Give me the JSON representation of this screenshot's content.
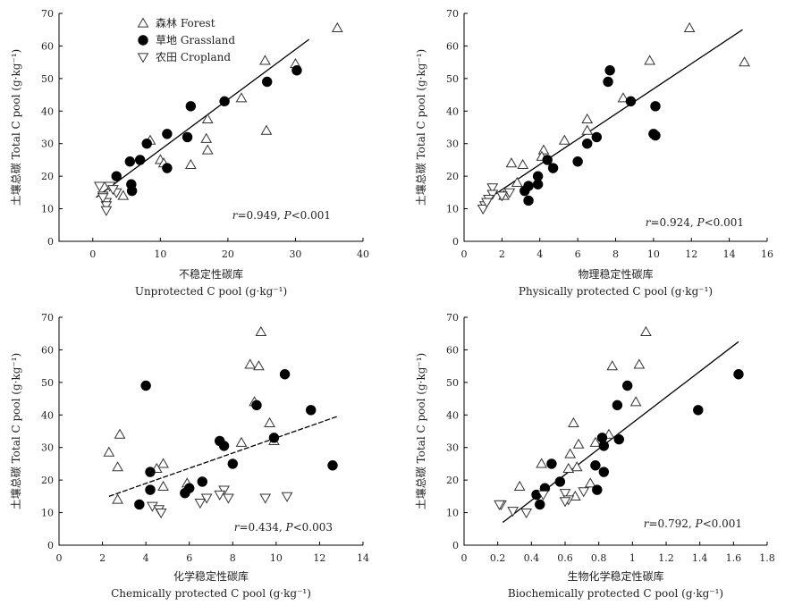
{
  "chart_data": [
    {
      "type": "scatter",
      "xlabel_cn": "不稳定性碳库",
      "xlabel": "Unprotected C pool (g·kg⁻¹)",
      "ylabel": "土壤总碳 Total C pool (g·kg⁻¹)",
      "xlim": [
        -5,
        40
      ],
      "ylim": [
        0,
        70
      ],
      "xticks": [
        0,
        10,
        20,
        30,
        40
      ],
      "yticks": [
        0,
        10,
        20,
        30,
        40,
        50,
        60,
        70
      ],
      "stat_r": "r",
      "stat_text": "=0.949, ",
      "stat_p": "P",
      "stat_tail": "<0.001",
      "fit": [
        [
          0.5,
          13.5
        ],
        [
          32,
          62
        ]
      ],
      "fit_style": "solid",
      "legend": [
        {
          "marker": "triangle-up",
          "label": "森林 Forest"
        },
        {
          "marker": "circle",
          "label": "草地 Grassland"
        },
        {
          "marker": "triangle-down",
          "label": "农田 Cropland"
        }
      ],
      "series": [
        {
          "name": "Forest",
          "marker": "triangle-up",
          "points": [
            [
              36.2,
              65.5
            ],
            [
              30,
              54.5
            ],
            [
              25.5,
              55.5
            ],
            [
              25.7,
              34
            ],
            [
              22,
              44
            ],
            [
              17,
              37.5
            ],
            [
              16.8,
              31.5
            ],
            [
              17,
              28
            ],
            [
              14.5,
              23.5
            ],
            [
              8.5,
              31
            ],
            [
              10,
              25
            ],
            [
              10.5,
              24
            ],
            [
              4.5,
              14
            ]
          ]
        },
        {
          "name": "Grassland",
          "marker": "circle",
          "points": [
            [
              30.2,
              52.5
            ],
            [
              25.8,
              49
            ],
            [
              19.5,
              43
            ],
            [
              14.5,
              41.5
            ],
            [
              14,
              32
            ],
            [
              11,
              33
            ],
            [
              11,
              22.5
            ],
            [
              8,
              30
            ],
            [
              7,
              25
            ],
            [
              5.5,
              24.5
            ],
            [
              3.5,
              20
            ],
            [
              5.7,
              17.5
            ],
            [
              5.8,
              15.5
            ]
          ]
        },
        {
          "name": "Cropland",
          "marker": "triangle-down",
          "points": [
            [
              1,
              17
            ],
            [
              2.5,
              17
            ],
            [
              3.5,
              15
            ],
            [
              1.5,
              14
            ],
            [
              2,
              12
            ],
            [
              2,
              11
            ],
            [
              2,
              9.5
            ],
            [
              1.5,
              13.5
            ],
            [
              3,
              16
            ]
          ]
        }
      ]
    },
    {
      "type": "scatter",
      "xlabel_cn": "物理稳定性碳库",
      "xlabel": "Physically protected C pool (g·kg⁻¹)",
      "ylabel": "土壤总碳 Total C pool (g·kg⁻¹)",
      "xlim": [
        0,
        16
      ],
      "ylim": [
        0,
        70
      ],
      "xticks": [
        0,
        2,
        4,
        6,
        8,
        10,
        12,
        14,
        16
      ],
      "yticks": [
        0,
        10,
        20,
        30,
        40,
        50,
        60,
        70
      ],
      "stat_r": "r",
      "stat_text": "=0.924, ",
      "stat_p": "P",
      "stat_tail": "<0.001",
      "fit": [
        [
          1,
          12
        ],
        [
          14.7,
          65
        ]
      ],
      "fit_style": "solid",
      "series": [
        {
          "name": "Forest",
          "marker": "triangle-up",
          "points": [
            [
              11.9,
              65.5
            ],
            [
              9.8,
              55.5
            ],
            [
              14.8,
              55
            ],
            [
              8.4,
              44
            ],
            [
              6.5,
              37.5
            ],
            [
              6.5,
              34
            ],
            [
              5.3,
              31
            ],
            [
              4.2,
              28
            ],
            [
              4.1,
              26
            ],
            [
              2.5,
              24
            ],
            [
              3.1,
              23.5
            ],
            [
              2.8,
              18
            ],
            [
              2.1,
              14
            ]
          ]
        },
        {
          "name": "Grassland",
          "marker": "circle",
          "points": [
            [
              7.7,
              52.5
            ],
            [
              7.6,
              49
            ],
            [
              8.8,
              43
            ],
            [
              10.1,
              41.5
            ],
            [
              10,
              33
            ],
            [
              10.1,
              32.5
            ],
            [
              7,
              32
            ],
            [
              6.5,
              30
            ],
            [
              6,
              24.5
            ],
            [
              4.7,
              22.5
            ],
            [
              4.4,
              25
            ],
            [
              3.9,
              20
            ],
            [
              3.9,
              17.5
            ],
            [
              3.4,
              17
            ],
            [
              3.2,
              15.5
            ],
            [
              3.4,
              12.5
            ]
          ]
        },
        {
          "name": "Cropland",
          "marker": "triangle-down",
          "points": [
            [
              1.5,
              16.5
            ],
            [
              1.5,
              14.5
            ],
            [
              2.4,
              15
            ],
            [
              1.1,
              11
            ],
            [
              1.3,
              13
            ],
            [
              1,
              10
            ],
            [
              1.2,
              12
            ],
            [
              2,
              14
            ]
          ]
        }
      ]
    },
    {
      "type": "scatter",
      "xlabel_cn": "化学稳定性碳库",
      "xlabel": "Chemically protected C pool (g·kg⁻¹)",
      "ylabel": "土壤总碳 Total C pool (g·kg⁻¹)",
      "xlim": [
        0,
        14
      ],
      "ylim": [
        0,
        70
      ],
      "xticks": [
        0,
        2,
        4,
        6,
        8,
        10,
        12,
        14
      ],
      "yticks": [
        0,
        10,
        20,
        30,
        40,
        50,
        60,
        70
      ],
      "stat_r": "r",
      "stat_text": "=0.434, ",
      "stat_p": "P",
      "stat_tail": "<0.003",
      "fit": [
        [
          2.3,
          15
        ],
        [
          12.8,
          39.5
        ]
      ],
      "fit_style": "dashed",
      "series": [
        {
          "name": "Forest",
          "marker": "triangle-up",
          "points": [
            [
              9.3,
              65.5
            ],
            [
              8.8,
              55.5
            ],
            [
              9.2,
              55
            ],
            [
              9,
              44
            ],
            [
              9.7,
              37.5
            ],
            [
              2.8,
              34
            ],
            [
              8.4,
              31.5
            ],
            [
              9.9,
              32
            ],
            [
              2.3,
              28.5
            ],
            [
              4.8,
              25
            ],
            [
              2.7,
              24
            ],
            [
              4.5,
              23.5
            ],
            [
              4.8,
              18
            ],
            [
              5.9,
              19
            ],
            [
              2.7,
              14
            ]
          ]
        },
        {
          "name": "Grassland",
          "marker": "circle",
          "points": [
            [
              4,
              49
            ],
            [
              10.4,
              52.5
            ],
            [
              9.1,
              43
            ],
            [
              11.6,
              41.5
            ],
            [
              9.9,
              33
            ],
            [
              7.4,
              32
            ],
            [
              7.6,
              30.5
            ],
            [
              8,
              25
            ],
            [
              12.6,
              24.5
            ],
            [
              4.2,
              22.5
            ],
            [
              6.6,
              19.5
            ],
            [
              6,
              17.5
            ],
            [
              5.8,
              16
            ],
            [
              4.2,
              17
            ],
            [
              3.7,
              12.5
            ]
          ]
        },
        {
          "name": "Cropland",
          "marker": "triangle-down",
          "points": [
            [
              7.6,
              17
            ],
            [
              7.4,
              15.5
            ],
            [
              7.8,
              14.5
            ],
            [
              6.8,
              14.5
            ],
            [
              6.5,
              13
            ],
            [
              9.5,
              14.5
            ],
            [
              10.5,
              15
            ],
            [
              4.3,
              12
            ],
            [
              4.6,
              11
            ],
            [
              4.7,
              10
            ]
          ]
        }
      ]
    },
    {
      "type": "scatter",
      "xlabel_cn": "生物化学稳定性碳库",
      "xlabel": "Biochemically protected C pool (g·kg⁻¹)",
      "ylabel": "土壤总碳 Total C pool (g·kg⁻¹)",
      "xlim": [
        0,
        1.8
      ],
      "ylim": [
        0,
        70
      ],
      "xticks": [
        0,
        0.2,
        0.4,
        0.6,
        0.8,
        1.0,
        1.2,
        1.4,
        1.6,
        1.8
      ],
      "yticks": [
        0,
        10,
        20,
        30,
        40,
        50,
        60,
        70
      ],
      "stat_r": "r",
      "stat_text": "=0.792, ",
      "stat_p": "P",
      "stat_tail": "<0.001",
      "fit": [
        [
          0.23,
          7
        ],
        [
          1.63,
          62.5
        ]
      ],
      "fit_style": "solid",
      "series": [
        {
          "name": "Forest",
          "marker": "triangle-up",
          "points": [
            [
              1.08,
              65.5
            ],
            [
              1.04,
              55.5
            ],
            [
              0.88,
              55
            ],
            [
              1.02,
              44
            ],
            [
              0.65,
              37.5
            ],
            [
              0.86,
              34
            ],
            [
              0.78,
              31.5
            ],
            [
              0.68,
              31
            ],
            [
              0.63,
              28
            ],
            [
              0.46,
              25
            ],
            [
              0.67,
              24
            ],
            [
              0.62,
              23.5
            ],
            [
              0.33,
              18
            ],
            [
              0.75,
              19
            ],
            [
              0.66,
              15
            ]
          ]
        },
        {
          "name": "Grassland",
          "marker": "circle",
          "points": [
            [
              1.63,
              52.5
            ],
            [
              0.97,
              49
            ],
            [
              0.91,
              43
            ],
            [
              1.39,
              41.5
            ],
            [
              0.82,
              33
            ],
            [
              0.92,
              32.5
            ],
            [
              0.83,
              30.5
            ],
            [
              0.78,
              24.5
            ],
            [
              0.52,
              25
            ],
            [
              0.83,
              22.5
            ],
            [
              0.57,
              19.5
            ],
            [
              0.48,
              17.5
            ],
            [
              0.79,
              17
            ],
            [
              0.43,
              15.5
            ],
            [
              0.45,
              12.5
            ]
          ]
        },
        {
          "name": "Cropland",
          "marker": "triangle-down",
          "points": [
            [
              0.22,
              12.5
            ],
            [
              0.21,
              12.5
            ],
            [
              0.29,
              10.5
            ],
            [
              0.37,
              10
            ],
            [
              0.47,
              15.5
            ],
            [
              0.6,
              16
            ],
            [
              0.62,
              14
            ],
            [
              0.6,
              13.5
            ],
            [
              0.71,
              16.5
            ]
          ]
        }
      ]
    }
  ]
}
